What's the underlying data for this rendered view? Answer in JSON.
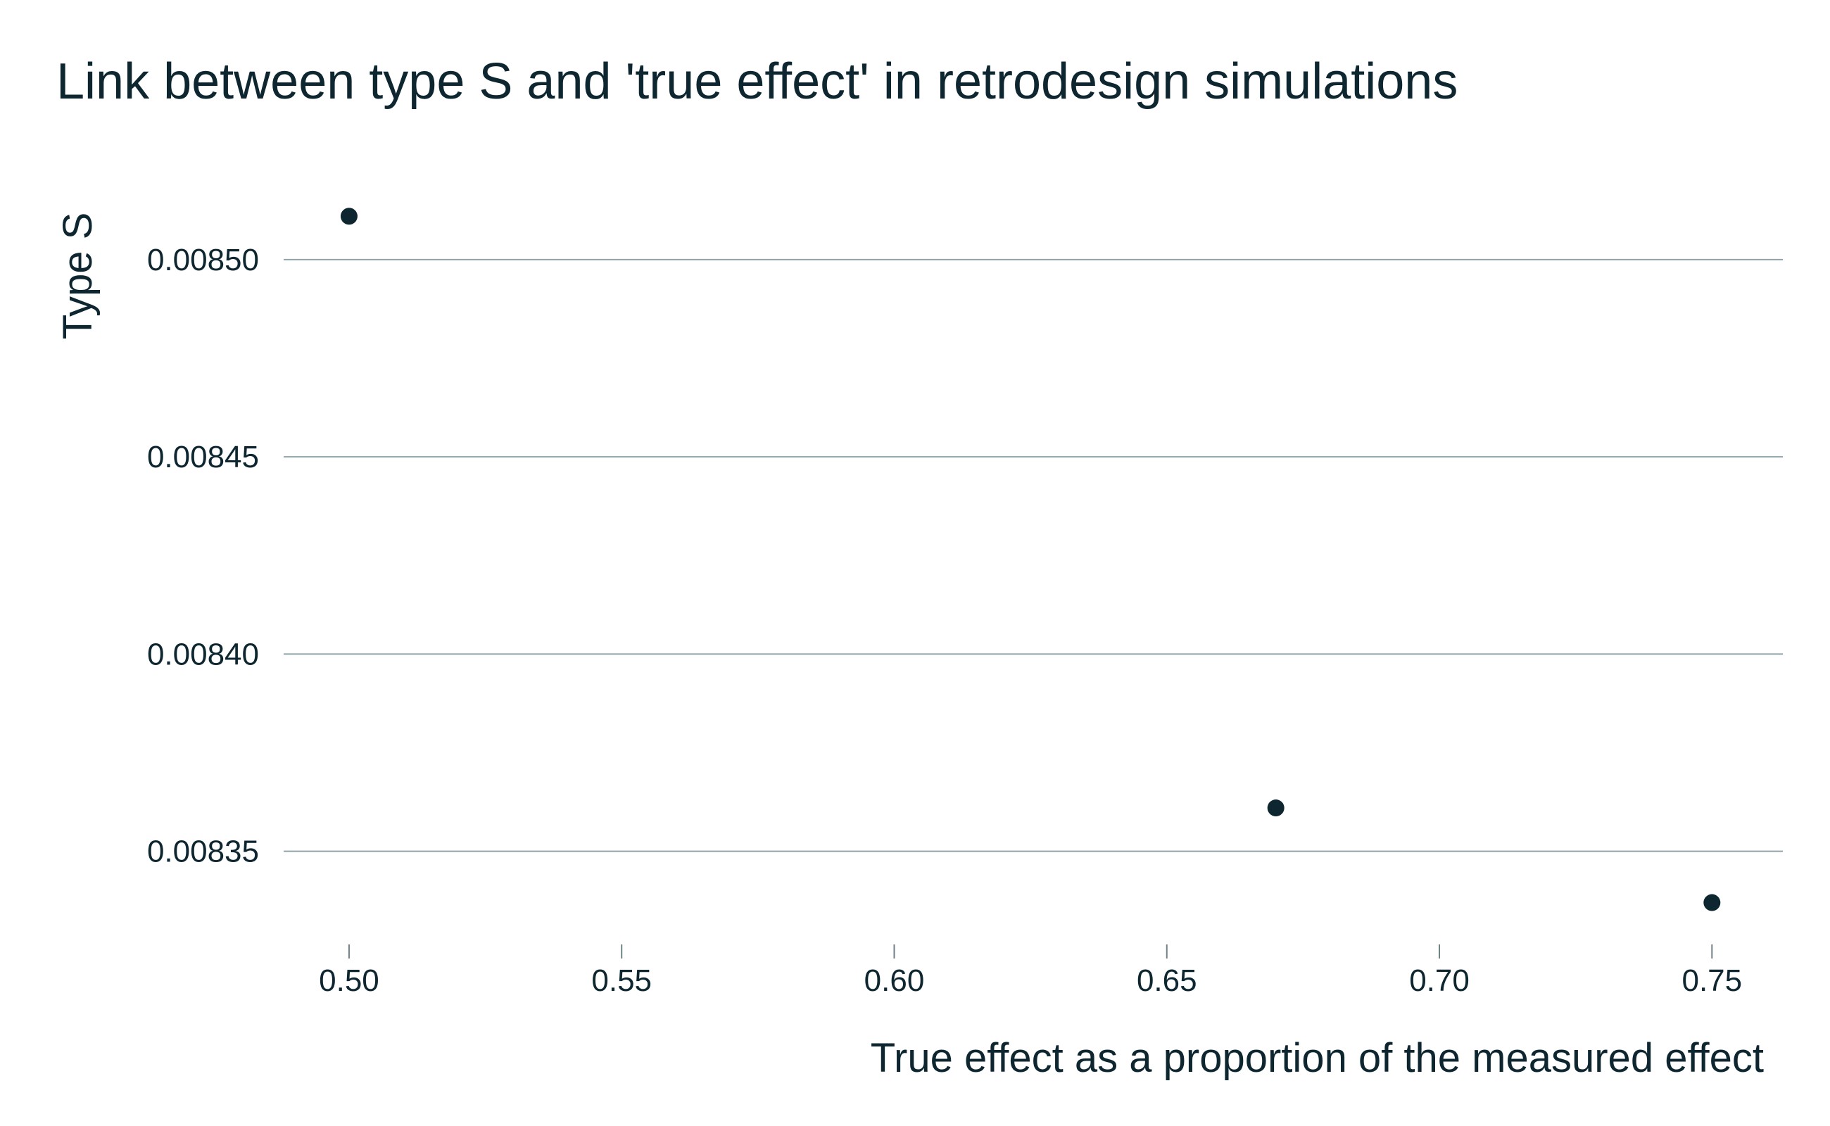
{
  "chart_data": {
    "type": "scatter",
    "title": "Link between type S and 'true effect' in retrodesign simulations",
    "xlabel": "True effect as a proportion of the measured effect",
    "ylabel": "Type S",
    "x": [
      0.5,
      0.67,
      0.75
    ],
    "y": [
      0.008511,
      0.008361,
      0.008337
    ],
    "xlim": [
      0.488,
      0.763
    ],
    "ylim": [
      0.008328,
      0.008523
    ],
    "x_ticks": [
      0.5,
      0.55,
      0.6,
      0.65,
      0.7,
      0.75
    ],
    "x_tick_labels": [
      "0.50",
      "0.55",
      "0.60",
      "0.65",
      "0.70",
      "0.75"
    ],
    "y_ticks": [
      0.0085,
      0.00845,
      0.0084,
      0.00835
    ],
    "y_tick_labels": [
      "0.00850",
      "0.00845",
      "0.00840",
      "0.00835"
    ],
    "grid": "horizontal",
    "legend": "none",
    "colors": {
      "text": "#0d2630",
      "point": "#0d2630",
      "grid": "#8fa3a8",
      "background": "#ffffff"
    }
  }
}
